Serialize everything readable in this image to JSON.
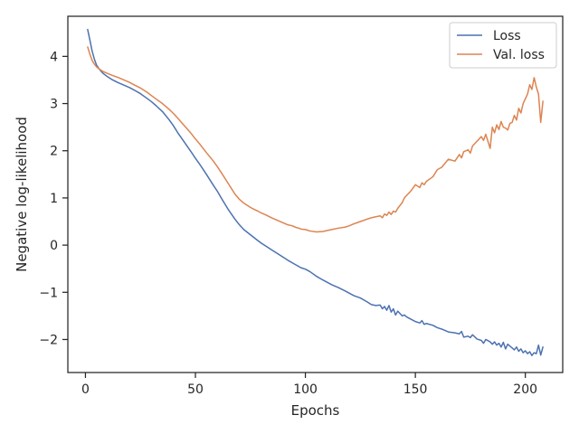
{
  "chart_data": {
    "type": "line",
    "title": "",
    "xlabel": "Epochs",
    "ylabel": "Negative log-likelihood",
    "xlim": [
      -8,
      217
    ],
    "ylim": [
      -2.7,
      4.85
    ],
    "xticks": [
      0,
      50,
      100,
      150,
      200
    ],
    "yticks": [
      -2,
      -1,
      0,
      1,
      2,
      3,
      4
    ],
    "ytick_labels": [
      "−2",
      "−1",
      "0",
      "1",
      "2",
      "3",
      "4"
    ],
    "grid": false,
    "legend_position": "top-right",
    "series": [
      {
        "name": "Loss",
        "color": "#4c72b0",
        "x": [
          1,
          2,
          3,
          4,
          5,
          6,
          7,
          8,
          10,
          12,
          15,
          18,
          20,
          22,
          25,
          28,
          30,
          32,
          35,
          38,
          40,
          42,
          45,
          48,
          50,
          52,
          55,
          58,
          60,
          62,
          65,
          68,
          70,
          72,
          75,
          78,
          80,
          82,
          85,
          88,
          90,
          92,
          95,
          98,
          100,
          102,
          105,
          108,
          110,
          112,
          115,
          118,
          120,
          122,
          125,
          128,
          130,
          132,
          134,
          135,
          136,
          137,
          138,
          139,
          140,
          141,
          142,
          143,
          144,
          145,
          146,
          148,
          150,
          152,
          153,
          154,
          155,
          158,
          160,
          162,
          165,
          168,
          170,
          171,
          172,
          174,
          175,
          176,
          178,
          180,
          181,
          182,
          184,
          185,
          186,
          187,
          188,
          189,
          190,
          191,
          192,
          193,
          194,
          195,
          196,
          197,
          198,
          199,
          200,
          201,
          202,
          203,
          204,
          205,
          206,
          207,
          208
        ],
        "y": [
          4.57,
          4.35,
          4.12,
          3.95,
          3.82,
          3.75,
          3.69,
          3.64,
          3.57,
          3.51,
          3.44,
          3.38,
          3.34,
          3.29,
          3.21,
          3.11,
          3.04,
          2.96,
          2.83,
          2.66,
          2.53,
          2.38,
          2.18,
          1.98,
          1.84,
          1.71,
          1.5,
          1.28,
          1.14,
          0.98,
          0.75,
          0.55,
          0.43,
          0.33,
          0.22,
          0.11,
          0.04,
          -0.02,
          -0.11,
          -0.2,
          -0.26,
          -0.32,
          -0.4,
          -0.48,
          -0.51,
          -0.56,
          -0.66,
          -0.74,
          -0.79,
          -0.84,
          -0.9,
          -0.97,
          -1.02,
          -1.07,
          -1.12,
          -1.2,
          -1.26,
          -1.28,
          -1.27,
          -1.35,
          -1.3,
          -1.38,
          -1.28,
          -1.42,
          -1.35,
          -1.48,
          -1.4,
          -1.45,
          -1.5,
          -1.48,
          -1.52,
          -1.57,
          -1.62,
          -1.65,
          -1.6,
          -1.68,
          -1.66,
          -1.7,
          -1.75,
          -1.78,
          -1.84,
          -1.86,
          -1.88,
          -1.83,
          -1.95,
          -1.93,
          -1.96,
          -1.9,
          -1.99,
          -2.02,
          -2.08,
          -2.0,
          -2.05,
          -2.1,
          -2.05,
          -2.12,
          -2.08,
          -2.16,
          -2.06,
          -2.2,
          -2.1,
          -2.14,
          -2.18,
          -2.22,
          -2.16,
          -2.25,
          -2.2,
          -2.28,
          -2.24,
          -2.3,
          -2.26,
          -2.34,
          -2.28,
          -2.3,
          -2.12,
          -2.33,
          -2.16
        ]
      },
      {
        "name": "Val. loss",
        "color": "#dd8452",
        "x": [
          1,
          2,
          3,
          4,
          5,
          6,
          7,
          8,
          10,
          12,
          15,
          18,
          20,
          22,
          25,
          28,
          30,
          32,
          35,
          38,
          40,
          42,
          45,
          48,
          50,
          52,
          55,
          58,
          60,
          62,
          65,
          68,
          70,
          72,
          75,
          77,
          78,
          80,
          82,
          85,
          88,
          90,
          92,
          94,
          95,
          96,
          97,
          98,
          100,
          102,
          105,
          108,
          110,
          112,
          115,
          118,
          120,
          122,
          125,
          128,
          130,
          132,
          134,
          135,
          136,
          137,
          138,
          139,
          140,
          141,
          142,
          144,
          145,
          146,
          148,
          150,
          152,
          153,
          154,
          155,
          158,
          160,
          162,
          165,
          168,
          170,
          171,
          172,
          174,
          175,
          176,
          178,
          180,
          181,
          182,
          184,
          185,
          186,
          187,
          188,
          189,
          190,
          191,
          192,
          193,
          194,
          195,
          196,
          197,
          198,
          199,
          200,
          201,
          202,
          203,
          204,
          205,
          206,
          207,
          208
        ],
        "y": [
          4.2,
          4.05,
          3.92,
          3.84,
          3.78,
          3.74,
          3.71,
          3.68,
          3.64,
          3.6,
          3.55,
          3.49,
          3.45,
          3.4,
          3.33,
          3.24,
          3.17,
          3.1,
          3.0,
          2.88,
          2.79,
          2.69,
          2.53,
          2.37,
          2.25,
          2.14,
          1.96,
          1.79,
          1.66,
          1.52,
          1.3,
          1.08,
          0.97,
          0.89,
          0.8,
          0.75,
          0.73,
          0.68,
          0.64,
          0.57,
          0.51,
          0.47,
          0.43,
          0.41,
          0.39,
          0.37,
          0.36,
          0.34,
          0.33,
          0.3,
          0.28,
          0.29,
          0.31,
          0.33,
          0.36,
          0.38,
          0.41,
          0.45,
          0.5,
          0.55,
          0.58,
          0.6,
          0.62,
          0.58,
          0.66,
          0.63,
          0.7,
          0.65,
          0.72,
          0.7,
          0.78,
          0.9,
          1.0,
          1.05,
          1.15,
          1.28,
          1.22,
          1.32,
          1.28,
          1.35,
          1.45,
          1.6,
          1.65,
          1.82,
          1.78,
          1.92,
          1.85,
          1.98,
          2.02,
          1.95,
          2.1,
          2.2,
          2.3,
          2.22,
          2.35,
          2.05,
          2.5,
          2.38,
          2.55,
          2.45,
          2.62,
          2.5,
          2.48,
          2.44,
          2.58,
          2.6,
          2.75,
          2.65,
          2.9,
          2.8,
          3.0,
          3.1,
          3.2,
          3.4,
          3.3,
          3.55,
          3.35,
          3.2,
          2.6,
          3.05
        ]
      }
    ]
  }
}
